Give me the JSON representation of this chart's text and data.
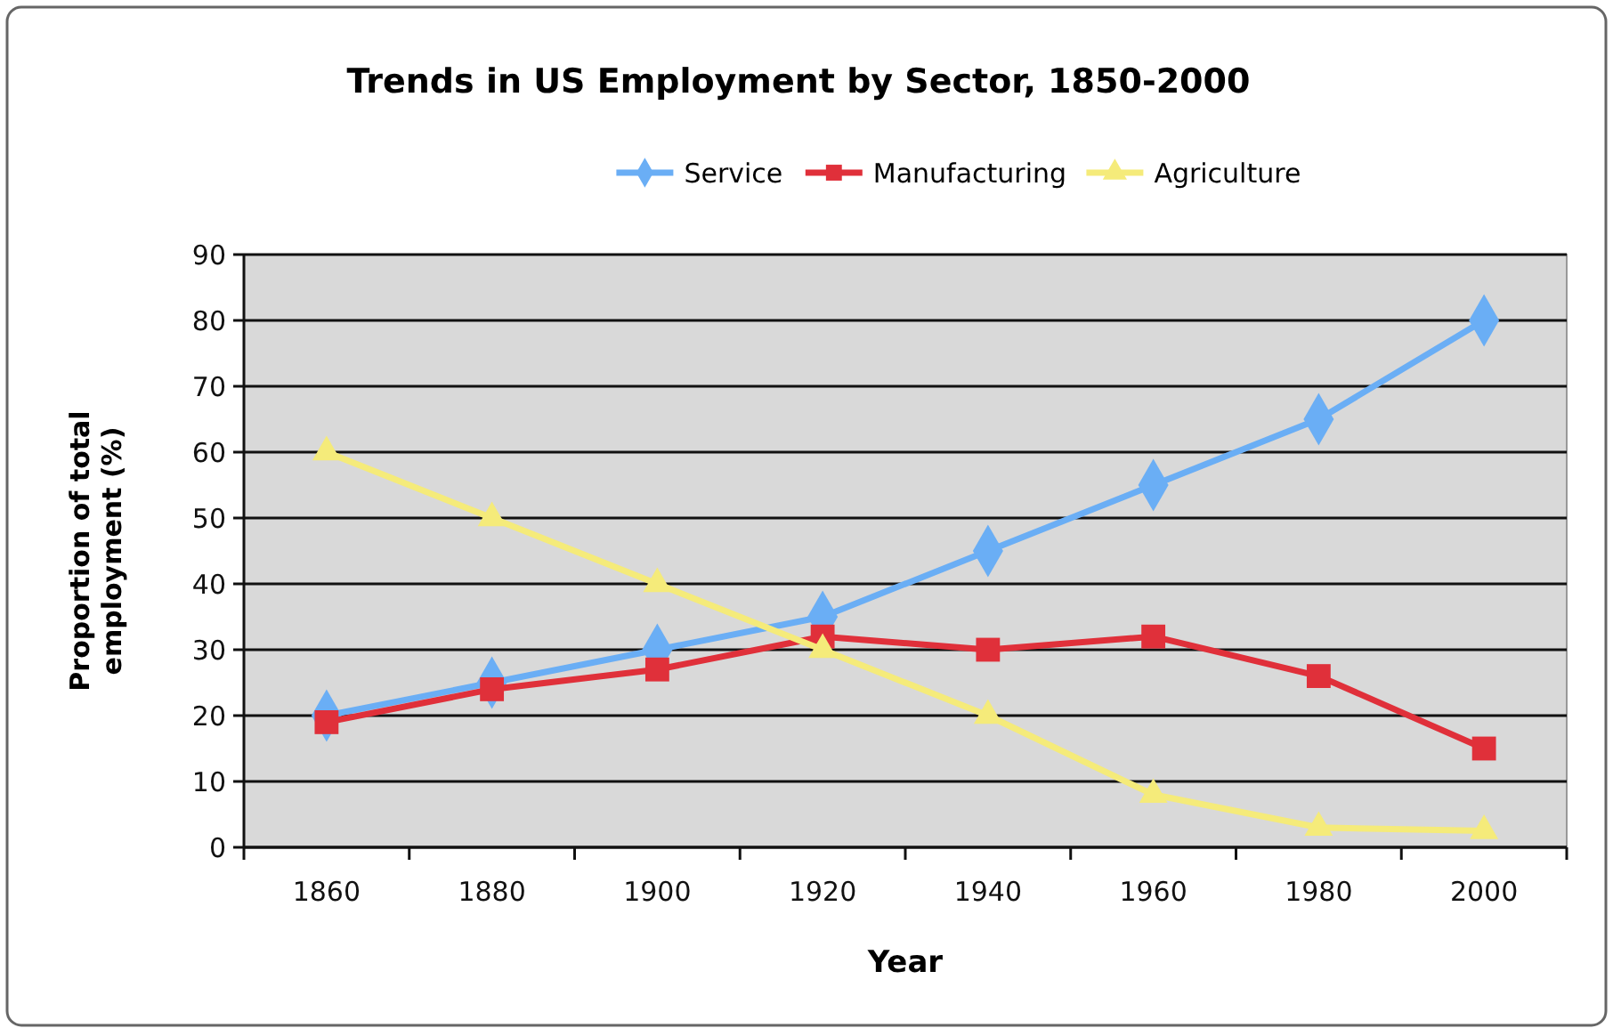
{
  "chart_data": {
    "type": "line",
    "title": "Trends in US Employment by Sector, 1850-2000",
    "xlabel": "Year",
    "ylabel": "Proportion of total employment (%)",
    "categories": [
      "1860",
      "1880",
      "1900",
      "1920",
      "1940",
      "1960",
      "1980",
      "2000"
    ],
    "series": [
      {
        "name": "Service",
        "color": "#6aaef5",
        "marker": "diamond",
        "values": [
          20,
          25,
          30,
          35,
          45,
          55,
          65,
          80
        ]
      },
      {
        "name": "Manufacturing",
        "color": "#e0303a",
        "marker": "square",
        "values": [
          19,
          24,
          27,
          32,
          30,
          32,
          26,
          15
        ]
      },
      {
        "name": "Agriculture",
        "color": "#f5eb7a",
        "marker": "triangle",
        "values": [
          60,
          50,
          40,
          30,
          20,
          8,
          3,
          2.5
        ]
      }
    ],
    "ylim": [
      0,
      90
    ],
    "yticks": [
      0,
      10,
      20,
      30,
      40,
      50,
      60,
      70,
      80,
      90
    ],
    "grid": "y",
    "legend": "top"
  }
}
